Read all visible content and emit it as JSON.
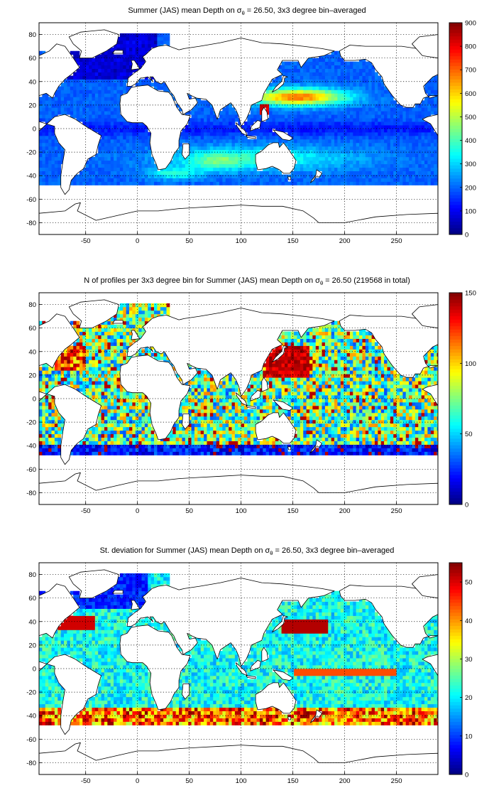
{
  "panels": [
    {
      "title_pre": "Summer (JAS) mean Depth on σ",
      "title_sub": "θ",
      "title_post": " = 26.50, 3x3 degree bin–averaged",
      "colorbar_ticks": [
        "0",
        "100",
        "200",
        "300",
        "400",
        "500",
        "600",
        "700",
        "800",
        "900"
      ]
    },
    {
      "title_pre": "N of profiles per 3x3 degree bin for Summer (JAS) mean Depth on σ",
      "title_sub": "θ",
      "title_post": " = 26.50 (219568 in total)",
      "colorbar_ticks": [
        "0",
        "50",
        "100",
        "150"
      ]
    },
    {
      "title_pre": "St. deviation for Summer (JAS) mean Depth on σ",
      "title_sub": "θ",
      "title_post": " = 26.50, 3x3 degree bin–averaged",
      "colorbar_ticks": [
        "0",
        "10",
        "20",
        "30",
        "40",
        "50"
      ]
    }
  ],
  "chart_data": [
    {
      "type": "heatmap",
      "title": "Summer (JAS) mean Depth on σθ = 26.50, 3x3 degree bin–averaged",
      "xlim": [
        -95,
        290
      ],
      "ylim": [
        -90,
        90
      ],
      "xticks": [
        -50,
        0,
        50,
        100,
        150,
        200,
        250
      ],
      "yticks": [
        -80,
        -60,
        -40,
        -20,
        0,
        20,
        40,
        60,
        80
      ],
      "colorbar": {
        "min": 0,
        "max": 900,
        "ticks": [
          0,
          100,
          200,
          300,
          400,
          500,
          600,
          700,
          800,
          900
        ],
        "colormap": "jet"
      },
      "grid": true
    },
    {
      "type": "heatmap",
      "title": "N of profiles per 3x3 degree bin for Summer (JAS) mean Depth on σθ = 26.50 (219568 in total)",
      "xlim": [
        -95,
        290
      ],
      "ylim": [
        -90,
        90
      ],
      "xticks": [
        -50,
        0,
        50,
        100,
        150,
        200,
        250
      ],
      "yticks": [
        -80,
        -60,
        -40,
        -20,
        0,
        20,
        40,
        60,
        80
      ],
      "colorbar": {
        "min": 0,
        "max": 150,
        "ticks": [
          0,
          50,
          100,
          150
        ],
        "colormap": "jet"
      },
      "grid": true
    },
    {
      "type": "heatmap",
      "title": "St. deviation for Summer (JAS) mean Depth on σθ = 26.50, 3x3 degree bin–averaged",
      "xlim": [
        -95,
        290
      ],
      "ylim": [
        -90,
        90
      ],
      "xticks": [
        -50,
        0,
        50,
        100,
        150,
        200,
        250
      ],
      "yticks": [
        -80,
        -60,
        -40,
        -20,
        0,
        20,
        40,
        60,
        80
      ],
      "colorbar": {
        "min": 0,
        "max": 55,
        "ticks": [
          0,
          10,
          20,
          30,
          40,
          50
        ],
        "colormap": "jet"
      },
      "grid": true
    }
  ]
}
